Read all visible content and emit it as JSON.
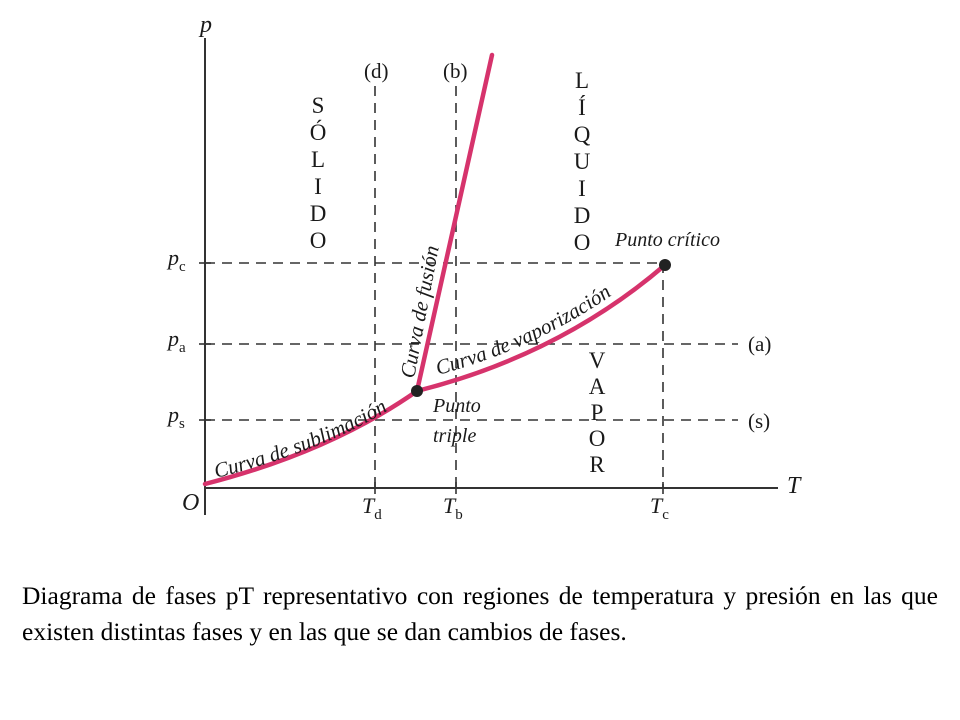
{
  "diagram": {
    "axes": {
      "y_label": "p",
      "x_label": "T",
      "origin_label": "O"
    },
    "pressure_ticks": [
      {
        "id": "pc",
        "base": "p",
        "sub": "c"
      },
      {
        "id": "pa",
        "base": "p",
        "sub": "a"
      },
      {
        "id": "ps",
        "base": "p",
        "sub": "s"
      }
    ],
    "temperature_ticks": [
      {
        "id": "td",
        "base": "T",
        "sub": "d"
      },
      {
        "id": "tb",
        "base": "T",
        "sub": "b"
      },
      {
        "id": "tc",
        "base": "T",
        "sub": "c"
      }
    ],
    "process_labels": {
      "d": "(d)",
      "b": "(b)",
      "a": "(a)",
      "s": "(s)"
    },
    "regions": {
      "solid": [
        "S",
        "Ó",
        "L",
        "I",
        "D",
        "O"
      ],
      "liquid": [
        "L",
        "Í",
        "Q",
        "U",
        "I",
        "D",
        "O"
      ],
      "vapor": [
        "V",
        "A",
        "P",
        "O",
        "R"
      ]
    },
    "curves": {
      "sublimation": "Curva de sublimación",
      "fusion": "Curva de fusión",
      "vaporization": "Curva de vaporización"
    },
    "points": {
      "critical": "Punto crítico",
      "triple_line1": "Punto",
      "triple_line2": "triple"
    },
    "colors": {
      "curve": "#d6336c",
      "axes": "#333333",
      "dashed": "#333333",
      "point": "#222222"
    }
  },
  "caption": "Diagrama de fases pT representativo con regiones de temperatura y presión en las que existen distintas fases y en las que se dan cambios de fases."
}
